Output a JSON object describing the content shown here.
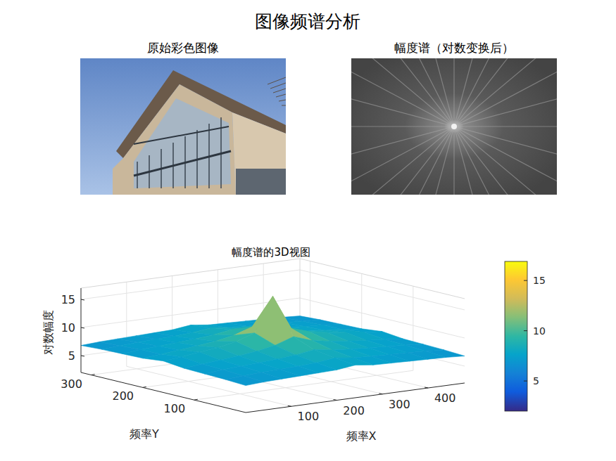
{
  "suptitle": "图像频谱分析",
  "images": [
    {
      "title": "原始彩色图像"
    },
    {
      "title": "幅度谱（对数变换后）"
    }
  ],
  "chart_data": {
    "type": "surface",
    "title": "幅度谱的3D视图",
    "x_label": "频率X",
    "y_label": "频率Y",
    "z_label": "对数幅度",
    "x": [
      0,
      40,
      80,
      120,
      160,
      200,
      240,
      280,
      320,
      360,
      400,
      440,
      480
    ],
    "y": [
      0,
      40,
      80,
      120,
      160,
      200,
      240,
      280,
      320
    ],
    "z": [
      [
        6.8,
        7.0,
        7.1,
        7.2,
        7.3,
        7.4,
        7.8,
        7.4,
        7.3,
        7.2,
        7.1,
        7.0,
        6.8
      ],
      [
        7.0,
        7.2,
        7.4,
        7.5,
        7.6,
        7.8,
        8.2,
        7.8,
        7.6,
        7.5,
        7.4,
        7.2,
        7.0
      ],
      [
        7.1,
        7.4,
        7.6,
        7.8,
        8.0,
        8.3,
        8.8,
        8.3,
        8.0,
        7.8,
        7.6,
        7.4,
        7.1
      ],
      [
        7.2,
        7.5,
        7.8,
        8.1,
        8.5,
        9.1,
        10.2,
        9.1,
        8.5,
        8.1,
        7.8,
        7.5,
        7.2
      ],
      [
        7.6,
        7.9,
        8.3,
        8.7,
        9.3,
        10.4,
        16.5,
        10.4,
        9.3,
        8.7,
        8.3,
        7.9,
        7.6
      ],
      [
        7.2,
        7.5,
        7.8,
        8.1,
        8.5,
        9.1,
        10.2,
        9.1,
        8.5,
        8.1,
        7.8,
        7.5,
        7.2
      ],
      [
        7.1,
        7.4,
        7.6,
        7.8,
        8.0,
        8.3,
        8.8,
        8.3,
        8.0,
        7.8,
        7.6,
        7.4,
        7.1
      ],
      [
        7.0,
        7.2,
        7.4,
        7.5,
        7.6,
        7.8,
        8.2,
        7.8,
        7.6,
        7.5,
        7.4,
        7.2,
        7.0
      ],
      [
        6.8,
        7.0,
        7.1,
        7.2,
        7.3,
        7.4,
        7.8,
        7.4,
        7.3,
        7.2,
        7.1,
        7.0,
        6.8
      ]
    ],
    "xlim": [
      0,
      480
    ],
    "ylim": [
      0,
      320
    ],
    "zlim": [
      2,
      17
    ],
    "xticks": [
      100,
      200,
      300,
      400
    ],
    "yticks": [
      100,
      200,
      300
    ],
    "zticks": [
      5,
      10,
      15
    ],
    "colorbar": {
      "range": [
        2,
        16.9
      ],
      "ticks": [
        5,
        10,
        15
      ]
    },
    "grid": true
  }
}
